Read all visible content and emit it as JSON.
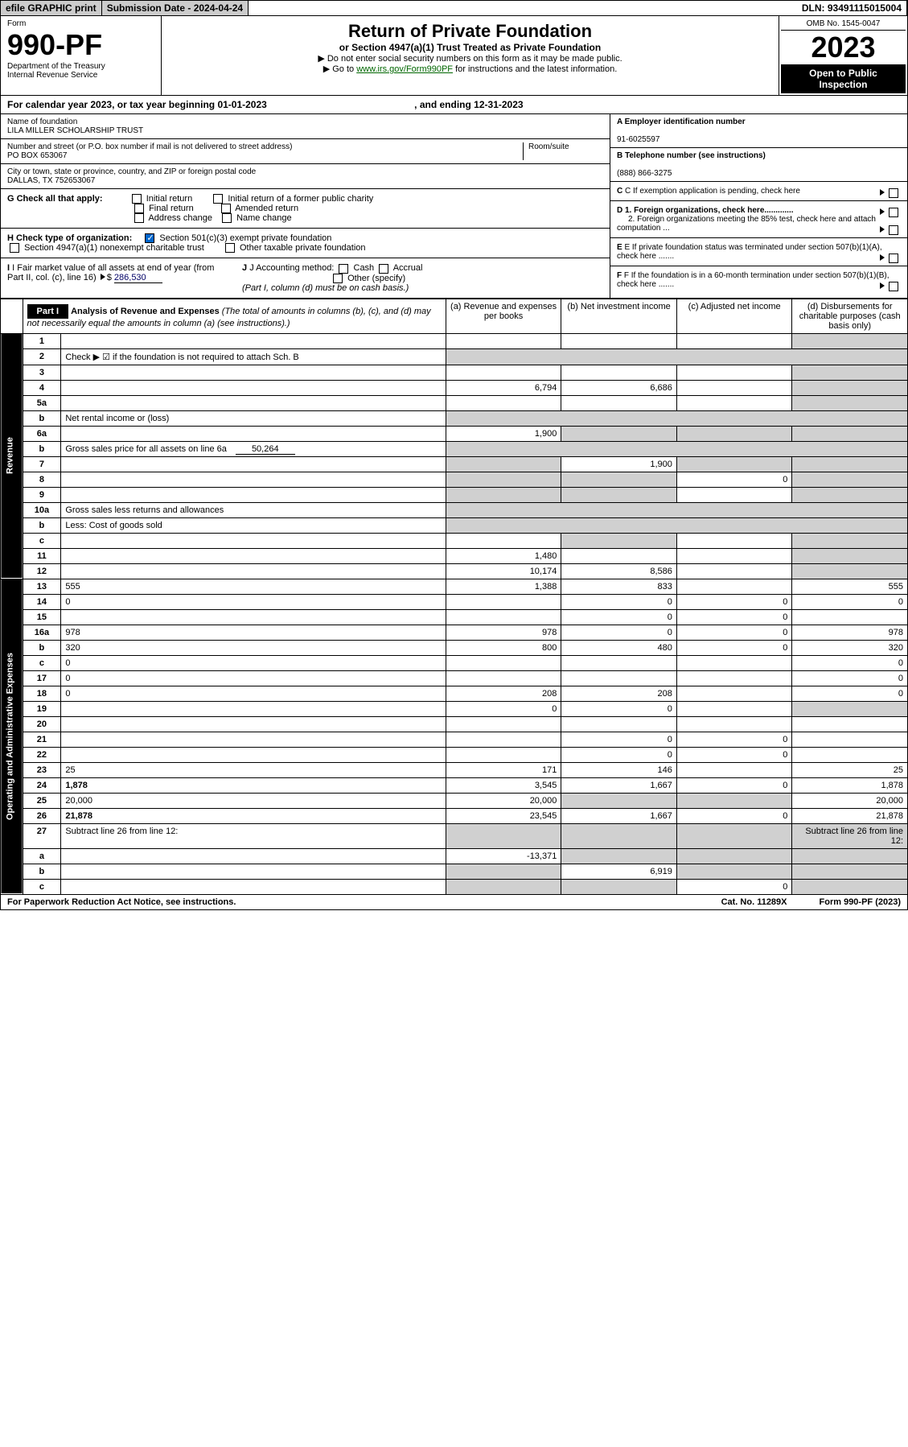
{
  "topbar": {
    "efile": "efile GRAPHIC print",
    "submission": "Submission Date - 2024-04-24",
    "dln": "DLN: 93491115015004"
  },
  "header": {
    "form_label": "Form",
    "form_number": "990-PF",
    "dept1": "Department of the Treasury",
    "dept2": "Internal Revenue Service",
    "main_title": "Return of Private Foundation",
    "subtitle": "or Section 4947(a)(1) Trust Treated as Private Foundation",
    "instruction1": "▶ Do not enter social security numbers on this form as it may be made public.",
    "instruction2_pre": "▶ Go to ",
    "instruction2_link": "www.irs.gov/Form990PF",
    "instruction2_post": " for instructions and the latest information.",
    "omb": "OMB No. 1545-0047",
    "tax_year": "2023",
    "open1": "Open to Public",
    "open2": "Inspection"
  },
  "calendar": "For calendar year 2023, or tax year beginning 01-01-2023",
  "calendar_end": ", and ending 12-31-2023",
  "info": {
    "name_label": "Name of foundation",
    "name": "LILA MILLER SCHOLARSHIP TRUST",
    "address_label": "Number and street (or P.O. box number if mail is not delivered to street address)",
    "room_label": "Room/suite",
    "address": "PO BOX 653067",
    "city_label": "City or town, state or province, country, and ZIP or foreign postal code",
    "city": "DALLAS, TX  752653067",
    "ein_label": "A Employer identification number",
    "ein": "91-6025597",
    "phone_label": "B Telephone number (see instructions)",
    "phone": "(888) 866-3275",
    "c_label": "C If exemption application is pending, check here",
    "d1": "D 1. Foreign organizations, check here.............",
    "d2": "2. Foreign organizations meeting the 85% test, check here and attach computation ...",
    "e_label": "E If private foundation status was terminated under section 507(b)(1)(A), check here .......",
    "f_label": "F If the foundation is in a 60-month termination under section 507(b)(1)(B), check here .......",
    "g_label": "G Check all that apply:",
    "g_options": [
      "Initial return",
      "Initial return of a former public charity",
      "Final return",
      "Amended return",
      "Address change",
      "Name change"
    ],
    "h_label": "H Check type of organization:",
    "h_opt1": "Section 501(c)(3) exempt private foundation",
    "h_opt2": "Section 4947(a)(1) nonexempt charitable trust",
    "h_opt3": "Other taxable private foundation",
    "i_label": "I Fair market value of all assets at end of year (from Part II, col. (c), line 16)",
    "i_value": "286,530",
    "j_label": "J Accounting method:",
    "j_cash": "Cash",
    "j_accrual": "Accrual",
    "j_other": "Other (specify)",
    "j_note": "(Part I, column (d) must be on cash basis.)"
  },
  "part1": {
    "label": "Part I",
    "title": "Analysis of Revenue and Expenses",
    "note": "(The total of amounts in columns (b), (c), and (d) may not necessarily equal the amounts in column (a) (see instructions).)",
    "col_a": "(a) Revenue and expenses per books",
    "col_b": "(b) Net investment income",
    "col_c": "(c) Adjusted net income",
    "col_d": "(d) Disbursements for charitable purposes (cash basis only)",
    "side_revenue": "Revenue",
    "side_expenses": "Operating and Administrative Expenses"
  },
  "rows": [
    {
      "n": "1",
      "d": "",
      "a": "",
      "b": "",
      "c": "",
      "grey_d": true
    },
    {
      "n": "2",
      "d": "Check ▶ ☑ if the foundation is not required to attach Sch. B",
      "nodata": true
    },
    {
      "n": "3",
      "d": "",
      "a": "",
      "b": "",
      "c": "",
      "grey_d": true
    },
    {
      "n": "4",
      "d": "",
      "a": "6,794",
      "b": "6,686",
      "c": "",
      "grey_d": true
    },
    {
      "n": "5a",
      "d": "",
      "a": "",
      "b": "",
      "c": "",
      "grey_d": true
    },
    {
      "n": "b",
      "d": "Net rental income or (loss)",
      "nodata": true,
      "sub": true
    },
    {
      "n": "6a",
      "d": "",
      "a": "1,900",
      "b": "",
      "c": "",
      "grey_b": true,
      "grey_c": true,
      "grey_d": true
    },
    {
      "n": "b",
      "d": "Gross sales price for all assets on line 6a",
      "sub": true,
      "subval": "50,264",
      "nodata": true
    },
    {
      "n": "7",
      "d": "",
      "a": "",
      "b": "1,900",
      "c": "",
      "grey_a": true,
      "grey_c": true,
      "grey_d": true
    },
    {
      "n": "8",
      "d": "",
      "a": "",
      "b": "",
      "c": "0",
      "grey_a": true,
      "grey_b": true,
      "grey_d": true
    },
    {
      "n": "9",
      "d": "",
      "a": "",
      "b": "",
      "c": "",
      "grey_a": true,
      "grey_b": true,
      "grey_d": true
    },
    {
      "n": "10a",
      "d": "Gross sales less returns and allowances",
      "nodata": true,
      "sub": true
    },
    {
      "n": "b",
      "d": "Less: Cost of goods sold",
      "nodata": true,
      "sub": true
    },
    {
      "n": "c",
      "d": "",
      "a": "",
      "b": "",
      "c": "",
      "grey_b": true,
      "grey_d": true
    },
    {
      "n": "11",
      "d": "",
      "a": "1,480",
      "b": "",
      "c": "",
      "grey_d": true
    },
    {
      "n": "12",
      "d": "",
      "a": "10,174",
      "b": "8,586",
      "c": "",
      "bold": true,
      "grey_d": true
    },
    {
      "n": "13",
      "d": "555",
      "a": "1,388",
      "b": "833",
      "c": ""
    },
    {
      "n": "14",
      "d": "0",
      "a": "",
      "b": "0",
      "c": "0"
    },
    {
      "n": "15",
      "d": "",
      "a": "",
      "b": "0",
      "c": "0"
    },
    {
      "n": "16a",
      "d": "978",
      "a": "978",
      "b": "0",
      "c": "0"
    },
    {
      "n": "b",
      "d": "320",
      "a": "800",
      "b": "480",
      "c": "0"
    },
    {
      "n": "c",
      "d": "0",
      "a": "",
      "b": "",
      "c": ""
    },
    {
      "n": "17",
      "d": "0",
      "a": "",
      "b": "",
      "c": ""
    },
    {
      "n": "18",
      "d": "0",
      "a": "208",
      "b": "208",
      "c": ""
    },
    {
      "n": "19",
      "d": "",
      "a": "0",
      "b": "0",
      "c": "",
      "grey_d": true
    },
    {
      "n": "20",
      "d": "",
      "a": "",
      "b": "",
      "c": ""
    },
    {
      "n": "21",
      "d": "",
      "a": "",
      "b": "0",
      "c": "0"
    },
    {
      "n": "22",
      "d": "",
      "a": "",
      "b": "0",
      "c": "0"
    },
    {
      "n": "23",
      "d": "25",
      "a": "171",
      "b": "146",
      "c": ""
    },
    {
      "n": "24",
      "d": "1,878",
      "a": "3,545",
      "b": "1,667",
      "c": "0",
      "bold": true
    },
    {
      "n": "25",
      "d": "20,000",
      "a": "20,000",
      "b": "",
      "c": "",
      "grey_b": true,
      "grey_c": true
    },
    {
      "n": "26",
      "d": "21,878",
      "a": "23,545",
      "b": "1,667",
      "c": "0",
      "bold": true
    },
    {
      "n": "27",
      "d": "Subtract line 26 from line 12:",
      "grey_a": true,
      "grey_b": true,
      "grey_c": true,
      "grey_d": true
    },
    {
      "n": "a",
      "d": "",
      "a": "-13,371",
      "b": "",
      "c": "",
      "bold": true,
      "grey_b": true,
      "grey_c": true,
      "grey_d": true
    },
    {
      "n": "b",
      "d": "",
      "a": "",
      "b": "6,919",
      "c": "",
      "bold": true,
      "grey_a": true,
      "grey_c": true,
      "grey_d": true
    },
    {
      "n": "c",
      "d": "",
      "a": "",
      "b": "",
      "c": "0",
      "bold": true,
      "grey_a": true,
      "grey_b": true,
      "grey_d": true
    }
  ],
  "footer": {
    "left": "For Paperwork Reduction Act Notice, see instructions.",
    "mid": "Cat. No. 11289X",
    "right": "Form 990-PF (2023)"
  }
}
